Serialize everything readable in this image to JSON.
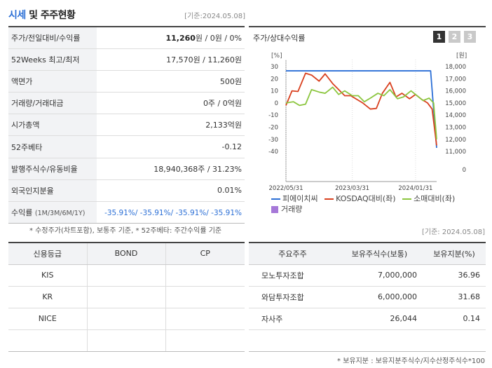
{
  "header": {
    "title_blue": "시세",
    "title_rest": " 및 주주현황",
    "base_date": "[기준:2024.05.08]"
  },
  "stats": {
    "rows": [
      {
        "label": "주가/전일대비/수익률",
        "value_strong": "11,260",
        "value_rest": "원 / 0원 / 0%"
      },
      {
        "label": "52Weeks 최고/최저",
        "value": "17,570원 / 11,260원"
      },
      {
        "label": "액면가",
        "value": "500원"
      },
      {
        "label": "거래량/거래대금",
        "value": "0주 / 0억원"
      },
      {
        "label": "시가총액",
        "value": "2,133억원"
      },
      {
        "label": "52주베타",
        "value": "-0.12"
      },
      {
        "label": "발행주식수/유동비율",
        "value": "18,940,368주 / 31.23%"
      },
      {
        "label": "외국인지분율",
        "value": "0.01%"
      },
      {
        "label": "수익률",
        "label_small": "(1M/3M/6M/1Y)",
        "value": "-35.91%/ -35.91%/ -35.91%/ -35.91%"
      }
    ],
    "note": "* 수정주가(차트포함), 보통주 기준, * 52주베타: 주간수익률 기준"
  },
  "chart_panel": {
    "title": "주가/상대수익률",
    "tabs": [
      "1",
      "2",
      "3"
    ],
    "active_tab": 0
  },
  "chart_data": {
    "type": "line",
    "left_unit": "[%]",
    "right_unit": "[원]",
    "left_ticks": [
      "30",
      "20",
      "10",
      "0",
      "-10",
      "-20",
      "-30",
      "-40"
    ],
    "right_ticks": [
      "18,000",
      "17,000",
      "16,000",
      "15,000",
      "14,000",
      "13,000",
      "12,000",
      "11,000",
      "0"
    ],
    "x_labels": [
      "2022/05/31",
      "2023/03/31",
      "2024/01/31"
    ],
    "ylim": [
      -40,
      30
    ],
    "series": [
      {
        "name": "피에이치씨",
        "color": "#2b6fd6",
        "x": [
          0,
          0.05,
          0.1,
          0.2,
          0.3,
          0.4,
          0.5,
          0.6,
          0.7,
          0.8,
          0.9,
          0.96,
          1.0
        ],
        "values": [
          26.5,
          26.5,
          26.5,
          26.5,
          26.5,
          26.5,
          26.5,
          26.5,
          26.5,
          26.5,
          26.5,
          26.5,
          -37
        ]
      },
      {
        "name": "KOSDAQ대비(좌)",
        "color": "#d9401f",
        "x": [
          0,
          0.04,
          0.08,
          0.13,
          0.17,
          0.22,
          0.26,
          0.31,
          0.35,
          0.39,
          0.43,
          0.47,
          0.51,
          0.56,
          0.6,
          0.64,
          0.69,
          0.73,
          0.77,
          0.82,
          0.86,
          0.9,
          0.94,
          0.97,
          1.0
        ],
        "values": [
          -2,
          10,
          9.5,
          24.5,
          23,
          18,
          24,
          16,
          11,
          6,
          6,
          3,
          0,
          -5,
          -4.5,
          8,
          17,
          5,
          8,
          3.5,
          7,
          3,
          0,
          -5,
          -35
        ]
      },
      {
        "name": "소매대비(좌)",
        "color": "#8cc63f",
        "x": [
          0,
          0.05,
          0.09,
          0.13,
          0.17,
          0.22,
          0.26,
          0.31,
          0.35,
          0.39,
          0.44,
          0.48,
          0.52,
          0.56,
          0.61,
          0.65,
          0.69,
          0.74,
          0.78,
          0.83,
          0.87,
          0.91,
          0.95,
          0.98,
          1.0
        ],
        "values": [
          0,
          1,
          -2,
          -1,
          11,
          9,
          8,
          13,
          7,
          10,
          6,
          6,
          1,
          4,
          8,
          6,
          11,
          3.5,
          5,
          10,
          6,
          2,
          4,
          0,
          -30
        ]
      },
      {
        "name": "거래량",
        "color": "#a678d8",
        "values": []
      }
    ]
  }
}
